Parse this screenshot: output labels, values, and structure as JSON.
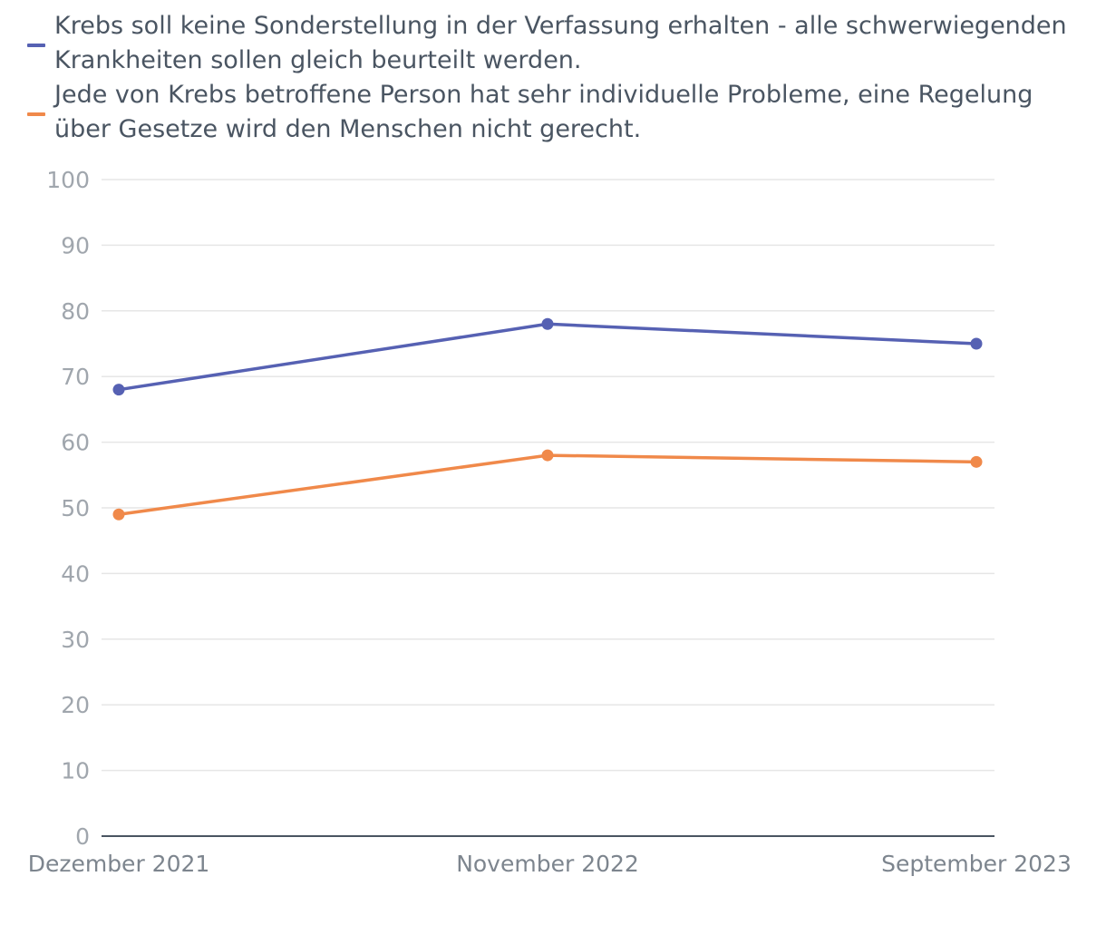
{
  "chart_data": {
    "type": "line",
    "categories": [
      "Dezember 2021",
      "November 2022",
      "September 2023"
    ],
    "series": [
      {
        "name": "Krebs soll keine Sonderstellung in der Verfassung erhalten - alle schwerwiegenden Krankheiten sollen gleich beurteilt werden.",
        "values": [
          68,
          78,
          75
        ],
        "color": "#5661b3"
      },
      {
        "name": "Jede von Krebs betroffene Person hat sehr individuelle Probleme, eine Regelung über Gesetze wird den Menschen nicht gerecht.",
        "values": [
          49,
          58,
          57
        ],
        "color": "#f0894a"
      }
    ],
    "ylim": [
      0,
      100
    ],
    "yticks": [
      0,
      10,
      20,
      30,
      40,
      50,
      60,
      70,
      80,
      90,
      100
    ],
    "grid": true,
    "legend_position": "top-left",
    "colors": {
      "grid": "#e6e6e6",
      "axis": "#4a5562",
      "tick_text": "#a0a6ad",
      "x_text": "#7d858e",
      "legend_text": "#4a5562"
    }
  }
}
